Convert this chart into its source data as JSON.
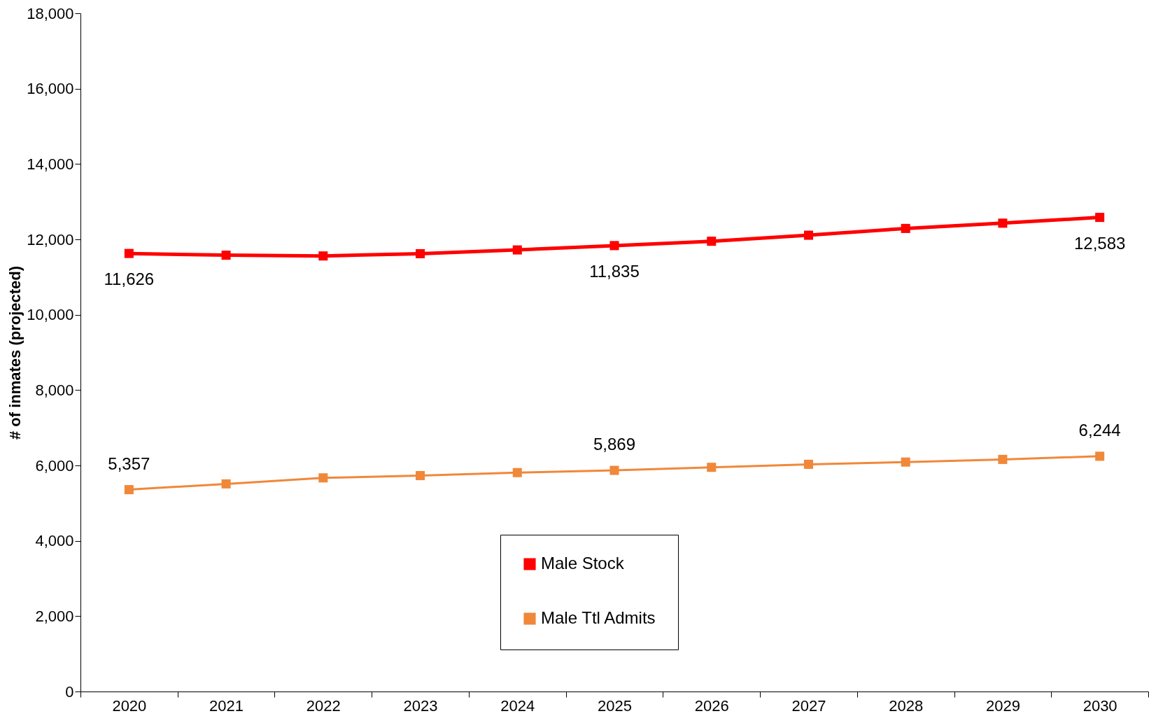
{
  "chart_data": {
    "type": "line",
    "ylabel": "# of inmates (projected)",
    "categories": [
      "2020",
      "2021",
      "2022",
      "2023",
      "2024",
      "2025",
      "2026",
      "2027",
      "2028",
      "2029",
      "2030"
    ],
    "series": [
      {
        "name": "Male Stock",
        "color": "#ff0000",
        "values": [
          11626,
          11580,
          11560,
          11620,
          11720,
          11835,
          11950,
          12110,
          12290,
          12430,
          12583
        ],
        "value_labels": [
          "11,626",
          null,
          null,
          null,
          null,
          "11,835",
          null,
          null,
          null,
          null,
          "12,583"
        ]
      },
      {
        "name": "Male Ttl Admits",
        "color": "#f0883a",
        "values": [
          5357,
          5510,
          5670,
          5730,
          5810,
          5869,
          5950,
          6030,
          6090,
          6160,
          6244
        ],
        "value_labels": [
          "5,357",
          null,
          null,
          null,
          null,
          "5,869",
          null,
          null,
          null,
          null,
          "6,244"
        ]
      }
    ],
    "ylim": [
      0,
      18000
    ],
    "yticks": [
      0,
      {
        "value": 2000,
        "label": "2,000"
      },
      {
        "value": 4000,
        "label": "4,000"
      },
      {
        "value": 6000,
        "label": "6,000"
      },
      {
        "value": 8000,
        "label": "8,000"
      },
      {
        "value": 10000,
        "label": "10,000"
      },
      {
        "value": 12000,
        "label": "12,000"
      },
      {
        "value": 14000,
        "label": "14,000"
      },
      {
        "value": 16000,
        "label": "16,000"
      },
      {
        "value": 18000,
        "label": "18,000"
      }
    ],
    "grid": false,
    "legend": "bottom",
    "marker": "square",
    "line_style": "solid"
  }
}
